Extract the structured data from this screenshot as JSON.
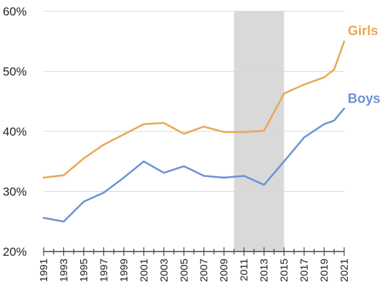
{
  "chart_data": {
    "type": "line",
    "title": "",
    "xlabel": "",
    "ylabel": "",
    "x": [
      1991,
      1993,
      1995,
      1997,
      1999,
      2001,
      2003,
      2005,
      2007,
      2009,
      2011,
      2013,
      2015,
      2017,
      2019,
      2020,
      2021
    ],
    "xtick_labels": [
      "1991",
      "1993",
      "1995",
      "1997",
      "1999",
      "2001",
      "2003",
      "2005",
      "2007",
      "2009",
      "2011",
      "2013",
      "2015",
      "2017",
      "2019",
      "2021"
    ],
    "ylim": [
      20,
      60
    ],
    "ytick_values": [
      20,
      30,
      40,
      50,
      60
    ],
    "ytick_labels": [
      "20%",
      "30%",
      "40%",
      "50%",
      "60%"
    ],
    "grid": "horizontal",
    "shaded_span": [
      2010,
      2015
    ],
    "shade_color": "#d9d9d9",
    "series": [
      {
        "name": "Girls",
        "color": "#e8a857",
        "values": [
          32.3,
          32.7,
          35.5,
          37.8,
          39.5,
          41.2,
          41.4,
          39.6,
          40.8,
          39.9,
          39.9,
          40.1,
          46.3,
          47.8,
          49.0,
          50.3,
          55.0
        ]
      },
      {
        "name": "Boys",
        "color": "#6d93d6",
        "values": [
          25.6,
          25.0,
          28.3,
          29.8,
          32.3,
          35.0,
          33.1,
          34.2,
          32.6,
          32.3,
          32.6,
          31.1,
          35.0,
          39.0,
          41.2,
          41.8,
          43.8
        ]
      }
    ]
  }
}
